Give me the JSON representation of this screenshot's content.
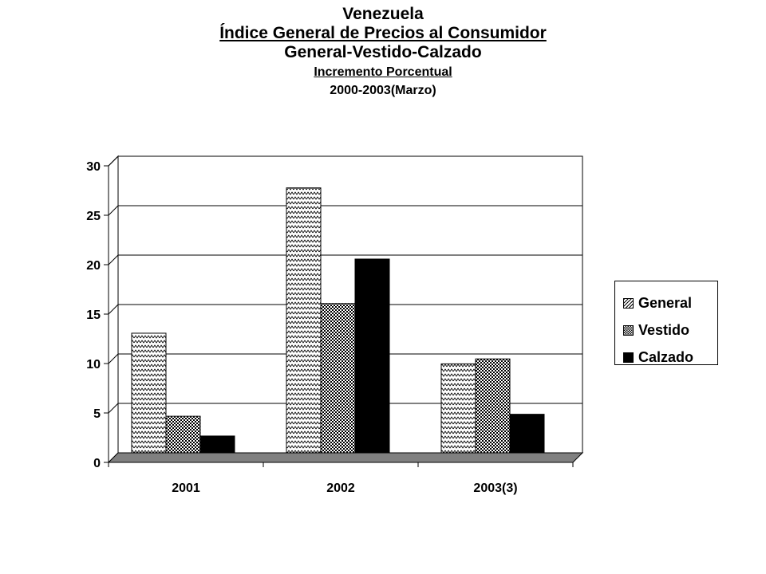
{
  "header": {
    "title": "Venezuela",
    "subtitle": "Índice General de Precios al Consumidor",
    "subtitle2": "General-Vestido-Calzado",
    "subtitle3": "Incremento Porcentual",
    "subtitle4": "2000-2003(Marzo)"
  },
  "colors": {
    "calzado": "#000000",
    "floor": "#808080"
  },
  "chart_data": {
    "type": "bar",
    "categories": [
      "2001",
      "2002",
      "2003(3)"
    ],
    "series": [
      {
        "name": "General",
        "values": [
          12.1,
          26.8,
          9.0
        ]
      },
      {
        "name": "Vestido",
        "values": [
          3.7,
          15.1,
          9.5
        ]
      },
      {
        "name": "Calzado",
        "values": [
          1.7,
          19.6,
          3.9
        ]
      }
    ],
    "yticks": [
      "0",
      "5",
      "10",
      "15",
      "20",
      "25",
      "30"
    ],
    "ylim": [
      0,
      30
    ],
    "grid": true,
    "legend_position": "right"
  },
  "legend": {
    "items": [
      {
        "label": "General",
        "pattern": "zigzag"
      },
      {
        "label": "Vestido",
        "pattern": "checker"
      },
      {
        "label": "Calzado",
        "pattern": "solid"
      }
    ]
  }
}
